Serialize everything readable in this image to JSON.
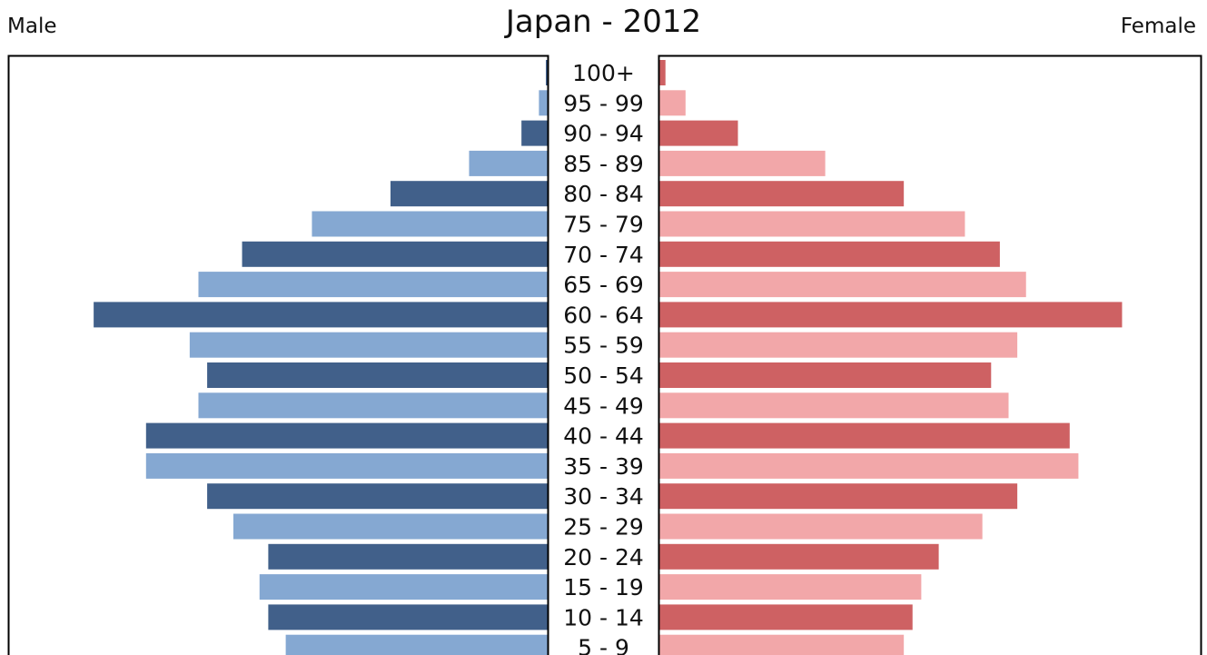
{
  "chart_data": {
    "type": "bar",
    "title": "Japan - 2012",
    "left_label": "Male",
    "right_label": "Female",
    "categories": [
      "100+",
      "95 - 99",
      "90 - 94",
      "85 - 89",
      "80 - 84",
      "75 - 79",
      "70 - 74",
      "65 - 69",
      "60 - 64",
      "55 - 59",
      "50 - 54",
      "45 - 49",
      "40 - 44",
      "35 - 39",
      "30 - 34",
      "25 - 29",
      "20 - 24",
      "15 - 19",
      "10 - 14",
      "5 - 9"
    ],
    "series": [
      {
        "values": [
          0.005,
          0.1,
          0.3,
          0.9,
          1.8,
          2.7,
          3.5,
          4.0,
          5.2,
          4.1,
          3.9,
          4.0,
          4.6,
          4.6,
          3.9,
          3.6,
          3.2,
          3.3,
          3.2,
          3.0
        ]
      },
      {
        "values": [
          0.07,
          0.3,
          0.9,
          1.9,
          2.8,
          3.5,
          3.9,
          4.2,
          5.3,
          4.1,
          3.8,
          4.0,
          4.7,
          4.8,
          4.1,
          3.7,
          3.2,
          3.0,
          2.9,
          2.8
        ]
      }
    ],
    "max_value": 6.2,
    "colors": {
      "male_dark": "#41608a",
      "male_light": "#85a8d2",
      "female_dark": "#ce6163",
      "female_light": "#f2a7a9"
    }
  }
}
